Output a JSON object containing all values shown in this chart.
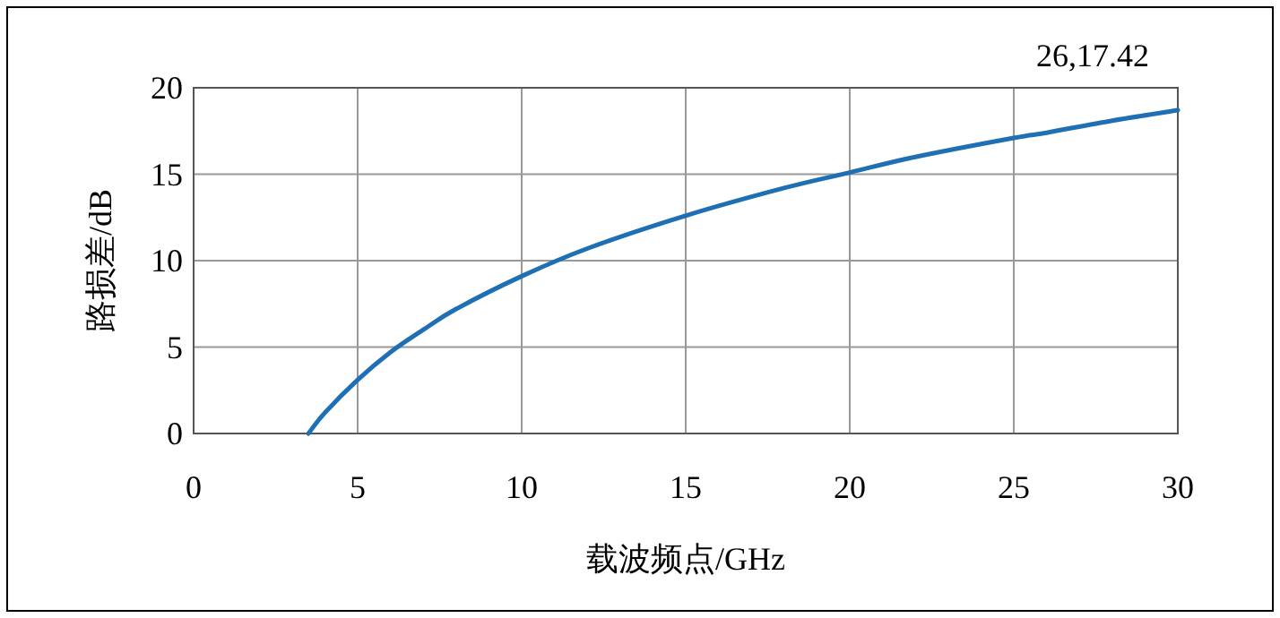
{
  "chart_data": {
    "type": "line",
    "xlabel": "载波频点/GHz",
    "ylabel": "路损差/dB",
    "x": [
      3.5,
      4,
      5,
      6,
      7,
      8,
      10,
      12,
      15,
      18,
      20,
      22,
      25,
      26,
      28,
      30
    ],
    "series": [
      {
        "color": "#1f6fb5",
        "values": [
          0,
          1.2,
          3.1,
          4.7,
          6,
          7.2,
          9.1,
          10.7,
          12.6,
          14.2,
          15.1,
          16,
          17.1,
          17.4,
          18.1,
          18.7
        ]
      }
    ],
    "xlim": [
      0,
      30
    ],
    "xticks": [
      0,
      5,
      10,
      15,
      20,
      25,
      30
    ],
    "ylim": [
      0,
      20
    ],
    "yticks": [
      0,
      5,
      10,
      15,
      20
    ],
    "grid": true,
    "marker": "none",
    "line_style": "solid",
    "annotations": [
      "26,17.42"
    ]
  }
}
